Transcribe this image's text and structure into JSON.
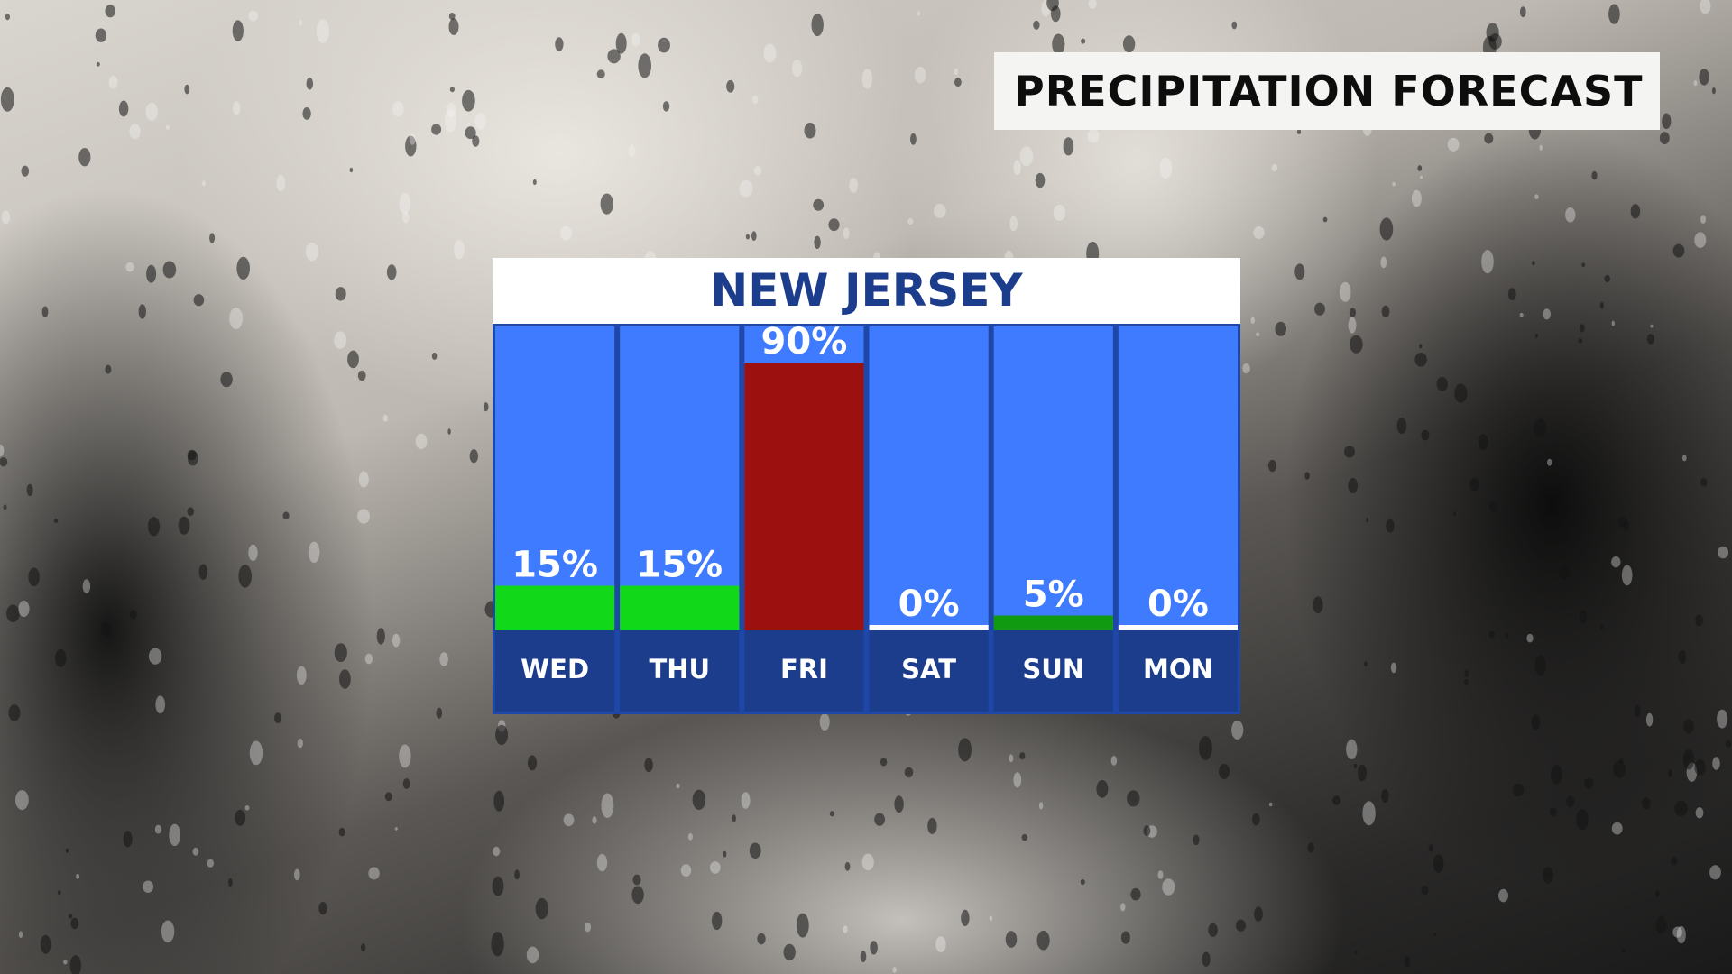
{
  "header": {
    "title": "PRECIPITATION FORECAST"
  },
  "panel": {
    "region": "NEW JERSEY"
  },
  "chart_data": {
    "type": "bar",
    "title": "",
    "categories": [
      "WED",
      "THU",
      "FRI",
      "SAT",
      "SUN",
      "MON"
    ],
    "values": [
      15,
      15,
      90,
      0,
      5,
      0
    ],
    "value_labels": [
      "15%",
      "15%",
      "90%",
      "0%",
      "5%",
      "0%"
    ],
    "unit": "%",
    "ylim": [
      0,
      100
    ],
    "grid": false,
    "legend": "none",
    "bar_colors": [
      "#12d81a",
      "#12d81a",
      "#9c1010",
      "#ffffff",
      "#109a12",
      "#ffffff"
    ],
    "colors": {
      "column_background": "#3f7bff",
      "column_border": "#1f47a8",
      "day_band": "#1c3c8c",
      "header_background": "#ffffff",
      "header_text": "#1c3c8c"
    }
  }
}
